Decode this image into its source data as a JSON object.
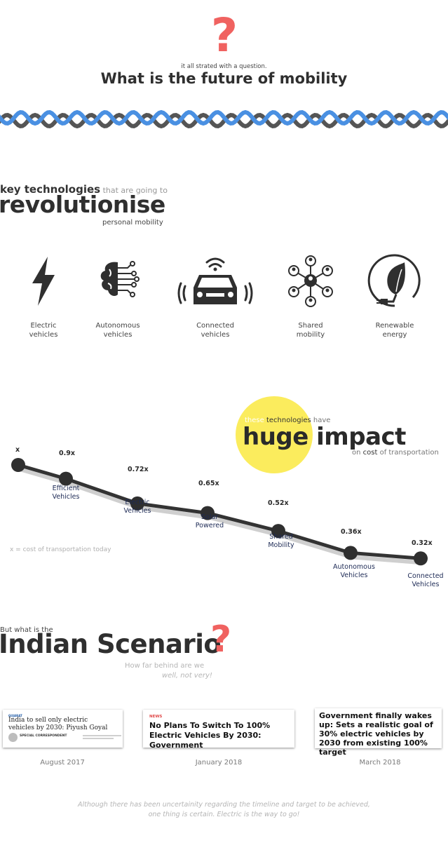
{
  "header": {
    "question_glyph": "?",
    "intro": "it all strated with a question.",
    "title": "What is the future of mobility"
  },
  "key_tech": {
    "line1_bold": "key technologies",
    "line1_light": " that are going to",
    "big": "revolutionise",
    "sub": "personal mobility",
    "items": [
      {
        "label": "Electric\nvehicles",
        "icon": "lightning-bolt-icon"
      },
      {
        "label": "Autonomous\nvehicles",
        "icon": "brain-circuit-icon"
      },
      {
        "label": "Connected\nvehicles",
        "icon": "connected-car-icon"
      },
      {
        "label": "Shared\nmobility",
        "icon": "people-network-icon"
      },
      {
        "label": "Renewable\nenergy",
        "icon": "leaf-plug-icon"
      }
    ]
  },
  "impact": {
    "top_white": "these",
    "top_dark": " technologies",
    "top_light": " have",
    "big": "huge impact",
    "sub_on": "on ",
    "sub_cost": "cost",
    "sub_rest": " of transportation",
    "note": "x = cost of transportation today",
    "points": [
      {
        "value": "x",
        "label": ""
      },
      {
        "value": "0.9x",
        "label": "Efficient\nVehicles"
      },
      {
        "value": "0.72x",
        "label": "Electric\nVehicles"
      },
      {
        "value": "0.65x",
        "label": "Solar\nPowered"
      },
      {
        "value": "0.52x",
        "label": "Shared\nMobility"
      },
      {
        "value": "0.36x",
        "label": "Autonomous\nVehicles"
      },
      {
        "value": "0.32x",
        "label": "Connected\nVehicles"
      }
    ]
  },
  "indian": {
    "top": "But what is the",
    "big": "Indian Scenario",
    "q": "?",
    "sub1": "How far behind are we",
    "sub2": "well, not very!"
  },
  "news": [
    {
      "tag": "GUJARAT",
      "headline": "India to sell only electric vehicles by 2030: Piyush Goyal",
      "byline": "SPECIAL CORRESPONDENT",
      "date": "August 2017"
    },
    {
      "tag": "NEWS",
      "headline": "No Plans To Switch To 100% Electric Vehicles By 2030: Government",
      "date": "January 2018"
    },
    {
      "headline": "Government finally wakes up: Sets a realistic goal of 30% electric vehicles by 2030 from existing 100% target",
      "date": "March 2018"
    }
  ],
  "closing": "Although there has been uncertainity regarding the timeline and target to be achieved,\none thing is certain. Electric is the way to go!",
  "colors": {
    "accent_red": "#f06260",
    "wave_blue": "#4a90e2",
    "wave_grey": "#555555",
    "highlight_yellow": "#fbec5d",
    "label_navy": "#1d2a55"
  }
}
